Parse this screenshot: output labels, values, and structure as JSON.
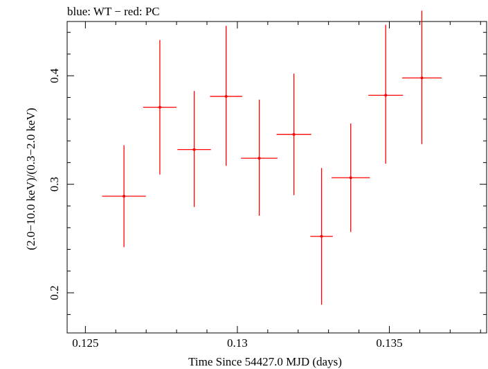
{
  "chart_data": {
    "type": "scatter",
    "title": "blue: WT − red: PC",
    "xlabel": "Time Since 54427.0 MJD (days)",
    "ylabel": "(2.0−10.0 keV)/(0.3−2.0 keV)",
    "xlim": [
      0.1244,
      0.1382
    ],
    "ylim": [
      0.163,
      0.45
    ],
    "xticks": [
      {
        "value": 0.125,
        "label": "0.125"
      },
      {
        "value": 0.13,
        "label": "0.13"
      },
      {
        "value": 0.135,
        "label": "0.135"
      }
    ],
    "yticks": [
      {
        "value": 0.2,
        "label": "0.2"
      },
      {
        "value": 0.3,
        "label": "0.3"
      },
      {
        "value": 0.4,
        "label": "0.4"
      }
    ],
    "grid": false,
    "series": [
      {
        "color": "#ff0000",
        "points": [
          {
            "x": 0.12627,
            "xerr": 0.00072,
            "y": 0.289,
            "ylo": 0.242,
            "yhi": 0.336
          },
          {
            "x": 0.12745,
            "xerr": 0.00055,
            "y": 0.371,
            "ylo": 0.309,
            "yhi": 0.433
          },
          {
            "x": 0.12858,
            "xerr": 0.00055,
            "y": 0.332,
            "ylo": 0.279,
            "yhi": 0.386
          },
          {
            "x": 0.12963,
            "xerr": 0.00053,
            "y": 0.381,
            "ylo": 0.317,
            "yhi": 0.446
          },
          {
            "x": 0.13072,
            "xerr": 0.0006,
            "y": 0.324,
            "ylo": 0.271,
            "yhi": 0.378
          },
          {
            "x": 0.13186,
            "xerr": 0.00057,
            "y": 0.346,
            "ylo": 0.29,
            "yhi": 0.402
          },
          {
            "x": 0.13277,
            "xerr": 0.00037,
            "y": 0.252,
            "ylo": 0.189,
            "yhi": 0.315
          },
          {
            "x": 0.13373,
            "xerr": 0.00063,
            "y": 0.306,
            "ylo": 0.256,
            "yhi": 0.356
          },
          {
            "x": 0.13488,
            "xerr": 0.00057,
            "y": 0.382,
            "ylo": 0.319,
            "yhi": 0.447
          },
          {
            "x": 0.13607,
            "xerr": 0.00065,
            "y": 0.398,
            "ylo": 0.337,
            "yhi": 0.46
          }
        ]
      }
    ]
  }
}
